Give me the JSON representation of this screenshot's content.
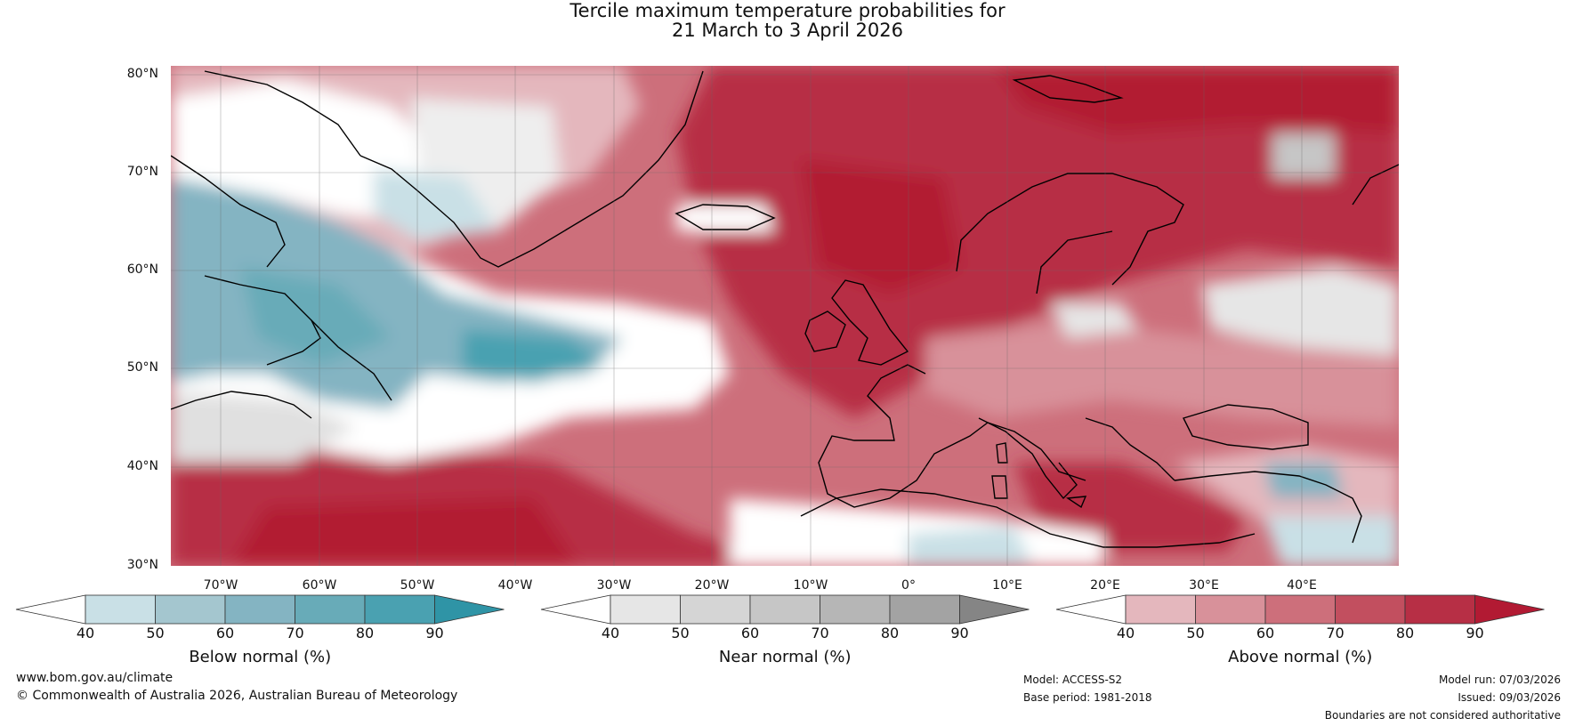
{
  "title": {
    "line1": "Tercile maximum temperature probabilities for",
    "line2": "21 March to 3 April 2026"
  },
  "map": {
    "lat_labels": [
      "80°N",
      "70°N",
      "60°N",
      "50°N",
      "40°N",
      "30°N"
    ],
    "lon_labels": [
      "70°W",
      "60°W",
      "50°W",
      "40°W",
      "30°W",
      "20°W",
      "10°W",
      "0°",
      "10°E",
      "20°E",
      "30°E",
      "40°E"
    ]
  },
  "colorbars": [
    {
      "label": "Below normal (%)",
      "ticks": [
        "40",
        "50",
        "60",
        "70",
        "80",
        "90"
      ],
      "colors": [
        "#ffffff",
        "#c9e0e6",
        "#a4c6cf",
        "#84b4c2",
        "#68abb8",
        "#4aa1b1",
        "#2f94a6"
      ]
    },
    {
      "label": "Near normal (%)",
      "ticks": [
        "40",
        "50",
        "60",
        "70",
        "80",
        "90"
      ],
      "colors": [
        "#ffffff",
        "#e6e6e6",
        "#d5d5d5",
        "#c6c6c6",
        "#b6b6b6",
        "#a3a3a3",
        "#858585"
      ]
    },
    {
      "label": "Above normal (%)",
      "ticks": [
        "40",
        "50",
        "60",
        "70",
        "80",
        "90"
      ],
      "colors": [
        "#ffffff",
        "#e4b7bd",
        "#d8919a",
        "#cd6f7b",
        "#c24f5f",
        "#b72f45",
        "#b21a33"
      ]
    }
  ],
  "footer": {
    "website": "www.bom.gov.au/climate",
    "copyright": "© Commonwealth of Australia 2026, Australian Bureau of Meteorology",
    "model": "Model: ACCESS-S2",
    "base_period": "Base period: 1981-2018",
    "model_run": "Model run: 07/03/2026",
    "issued": "Issued: 09/03/2026",
    "disclaimer": "Boundaries are not considered authoritative"
  }
}
